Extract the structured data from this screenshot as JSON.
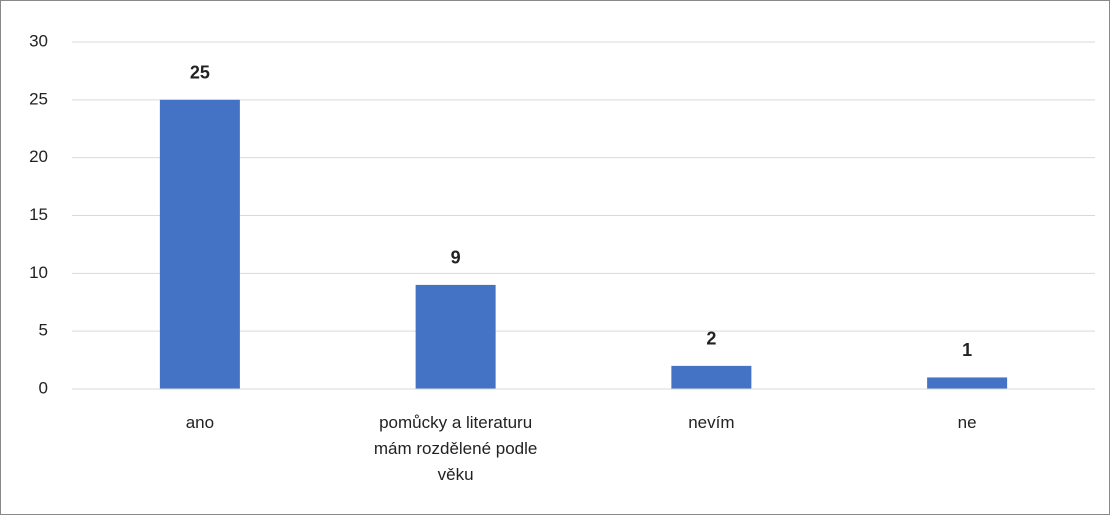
{
  "chart_data": {
    "type": "bar",
    "categories": [
      "ano",
      "pomůcky a literaturu mám rozdělené podle věku",
      "nevím",
      "ne"
    ],
    "values": [
      25,
      9,
      2,
      1
    ],
    "color": "#4472c4",
    "ylim": [
      0,
      30
    ],
    "yticks": [
      0,
      5,
      10,
      15,
      20,
      25,
      30
    ],
    "grid": true
  }
}
